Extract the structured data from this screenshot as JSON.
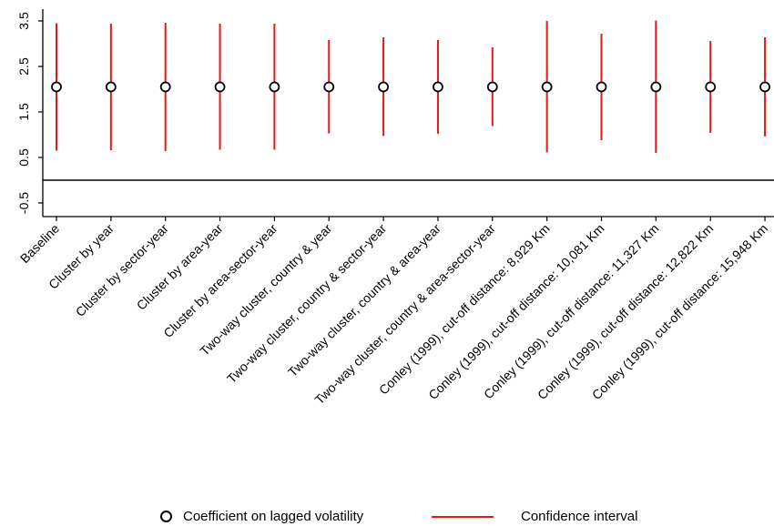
{
  "chart_data": {
    "type": "scatter",
    "title": "",
    "xlabel": "",
    "ylabel": "",
    "y_ticks": [
      3.5,
      2.5,
      1.5,
      0.5,
      -0.5
    ],
    "y_tick_labels": [
      "3.5",
      "2.5",
      "1.5",
      "0.5",
      "-0.5"
    ],
    "ylim": [
      -0.75,
      3.8
    ],
    "reference_line_y": 0,
    "categories": [
      "Baseline",
      "Cluster by year",
      "Cluster by sector-year",
      "Cluster by area-year",
      "Cluster by area-sector-year",
      "Two-way cluster, country & year",
      "Two-way cluster, country & sector-year",
      "Two-way cluster, country & area-year",
      "Two-way cluster, country & area-sector-year",
      "Conley (1999), cut-off distance: 8,929 Km",
      "Conley (1999), cut-off distance: 10,081 Km",
      "Conley (1999), cut-off distance: 11,327 Km",
      "Conley (1999), cut-off distance: 12,822 Km",
      "Conley (1999), cut-off distance: 15,948 Km"
    ],
    "series": [
      {
        "name": "Coefficient on lagged volatility",
        "marker": "hollow-circle",
        "color": "#000000",
        "values": [
          2.05,
          2.05,
          2.05,
          2.05,
          2.05,
          2.05,
          2.05,
          2.05,
          2.05,
          2.05,
          2.05,
          2.05,
          2.05,
          2.05
        ]
      },
      {
        "name": "Confidence interval",
        "marker": "vertical-line",
        "color": "#e31a1c",
        "lower": [
          0.65,
          0.66,
          0.64,
          0.67,
          0.67,
          1.03,
          0.97,
          1.02,
          1.19,
          0.61,
          0.88,
          0.6,
          1.04,
          0.96
        ],
        "upper": [
          3.45,
          3.44,
          3.46,
          3.44,
          3.44,
          3.08,
          3.14,
          3.08,
          2.92,
          3.5,
          3.22,
          3.51,
          3.06,
          3.14
        ]
      }
    ],
    "grid": false,
    "legend_position": "bottom-center"
  }
}
